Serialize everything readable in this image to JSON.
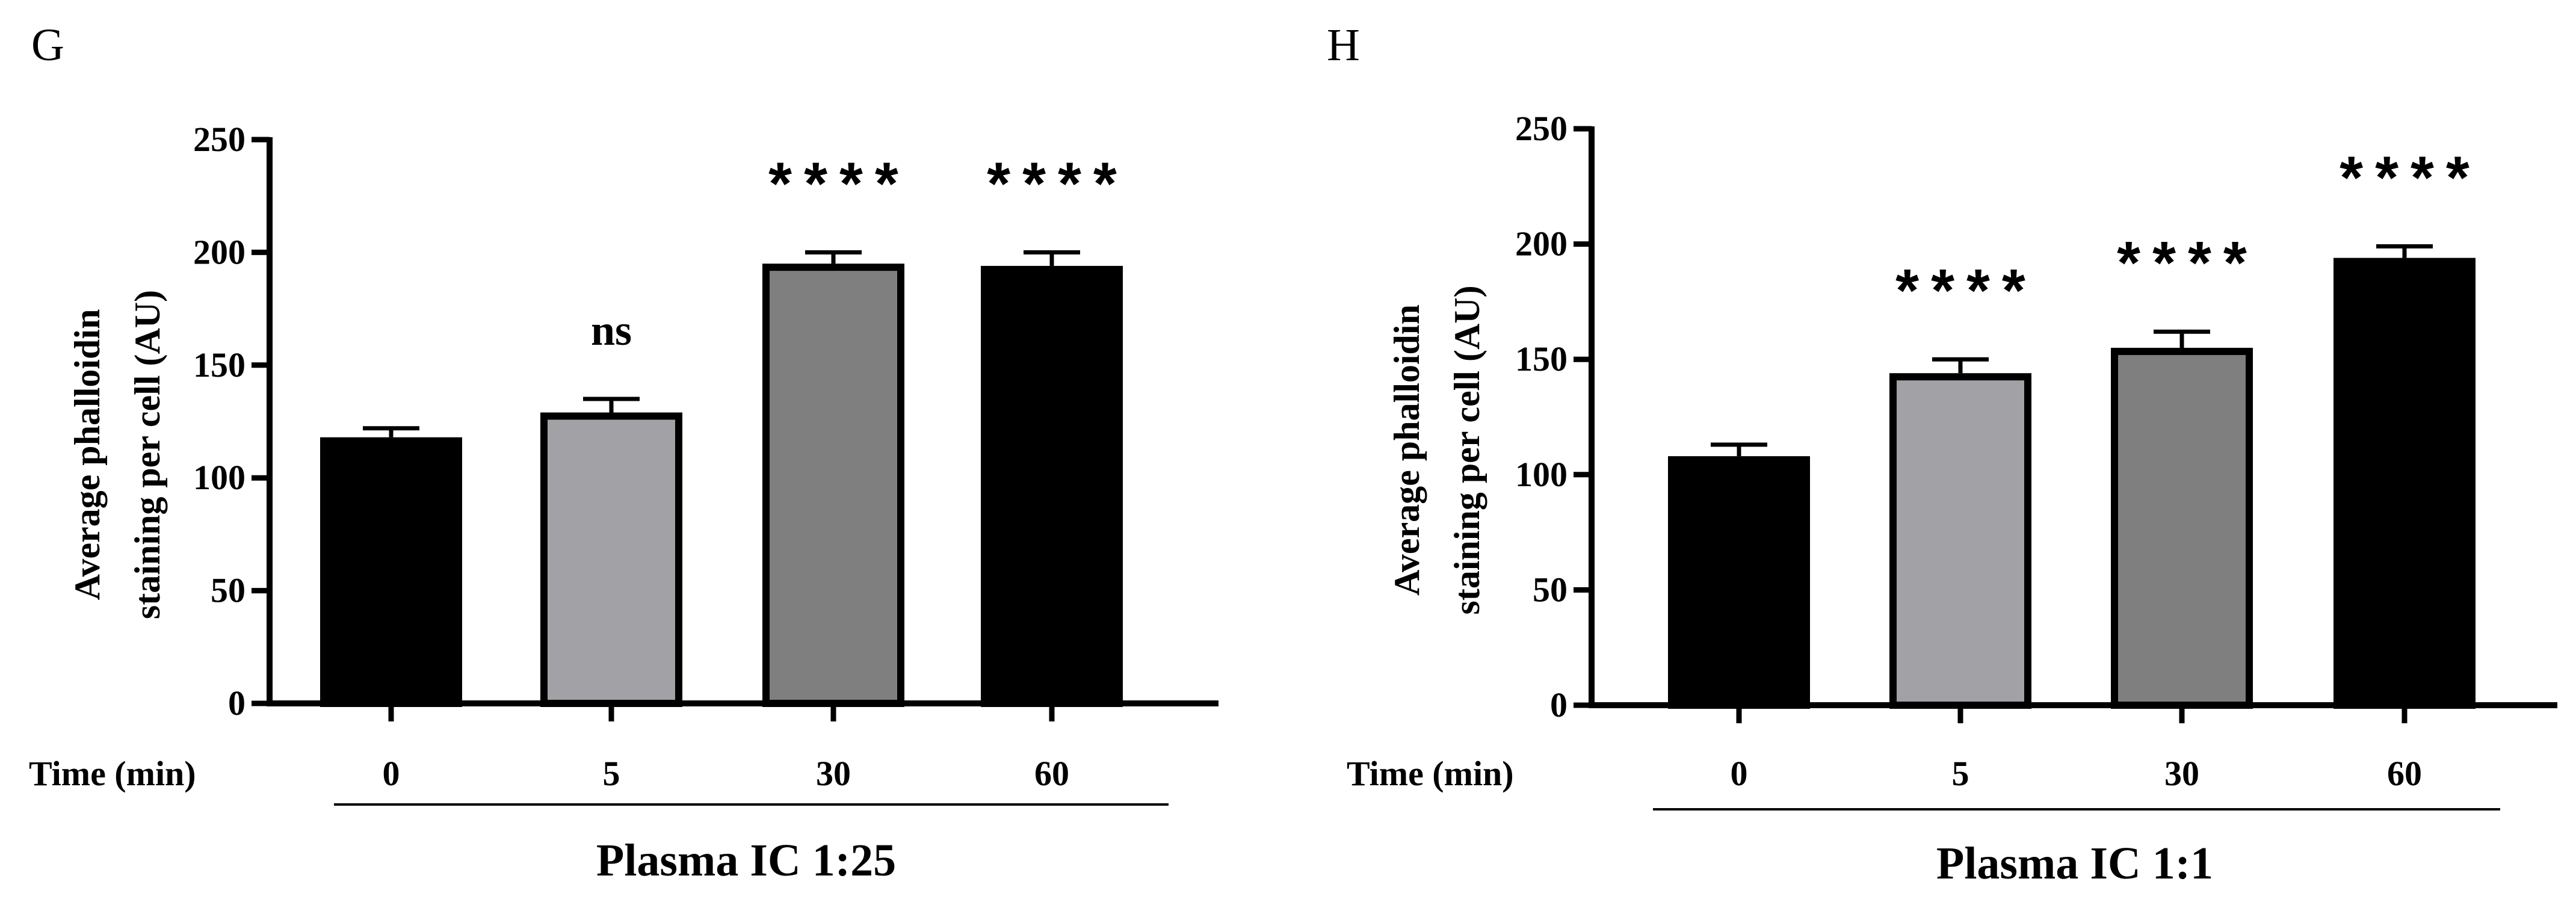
{
  "chart_data": [
    {
      "type": "bar",
      "panel_label": "G",
      "ylabel_line1": "Average phalloidin",
      "ylabel_line2": "staining per cell (AU)",
      "xlabel": "Time (min)",
      "group_label": "Plasma IC 1:25",
      "ylim": [
        0,
        250
      ],
      "yticks": [
        "0",
        "50",
        "100",
        "150",
        "200",
        "250"
      ],
      "categories": [
        "0",
        "5",
        "30",
        "60"
      ],
      "values": [
        118,
        129,
        195,
        194
      ],
      "errors": [
        4,
        6,
        5,
        6
      ],
      "significance": [
        "",
        "ns",
        "****",
        "****"
      ],
      "colors": [
        "#000000",
        "#a2a1a6",
        "#7f7f7f",
        "#000000"
      ]
    },
    {
      "type": "bar",
      "panel_label": "H",
      "ylabel_line1": "Average phalloidin",
      "ylabel_line2": "staining per cell (AU)",
      "xlabel": "Time (min)",
      "group_label": "Plasma IC 1:1",
      "ylim": [
        0,
        250
      ],
      "yticks": [
        "0",
        "50",
        "100",
        "150",
        "200",
        "250"
      ],
      "categories": [
        "0",
        "5",
        "30",
        "60"
      ],
      "values": [
        108,
        144,
        155,
        194
      ],
      "errors": [
        5,
        6,
        7,
        5
      ],
      "significance": [
        "",
        "****",
        "****",
        "****"
      ],
      "colors": [
        "#000000",
        "#a2a1a6",
        "#7f7f7f",
        "#000000"
      ]
    }
  ]
}
